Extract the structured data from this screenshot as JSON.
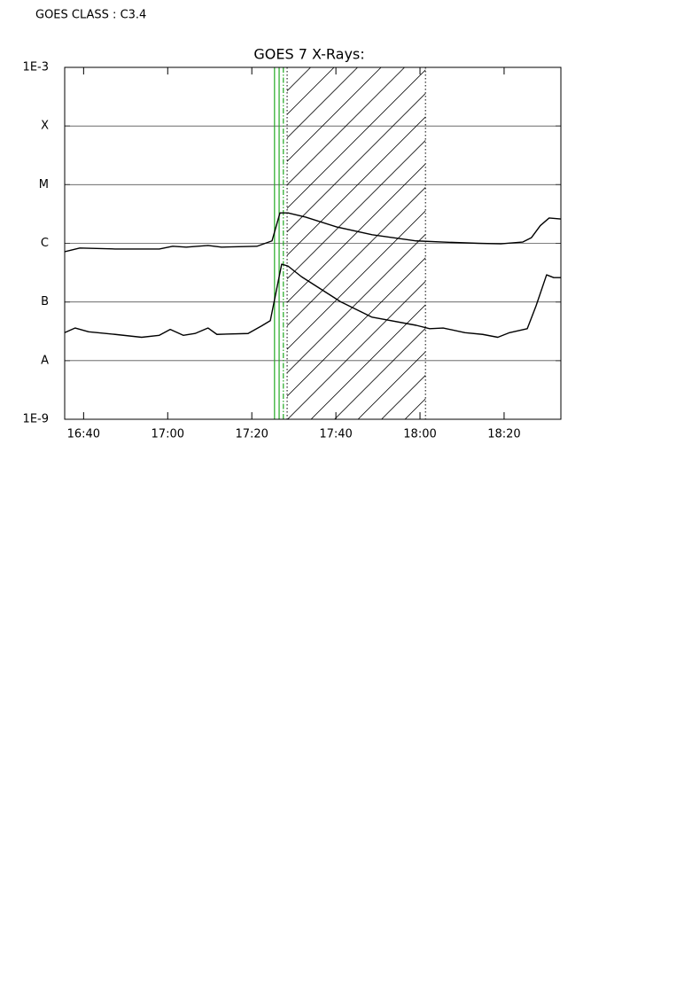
{
  "chart_data": {
    "type": "line",
    "annotation": "GOES CLASS : C3.4",
    "title": "GOES 7 X-Rays:",
    "log_y": true,
    "grid": true,
    "xlim": [
      995.5,
      1113.5
    ],
    "xticks": [
      {
        "value": 1000,
        "label": "16:40"
      },
      {
        "value": 1020,
        "label": "17:00"
      },
      {
        "value": 1040,
        "label": "17:20"
      },
      {
        "value": 1060,
        "label": "17:40"
      },
      {
        "value": 1080,
        "label": "18:00"
      },
      {
        "value": 1100,
        "label": "18:20"
      }
    ],
    "ylim": [
      1e-09,
      0.001
    ],
    "yticks": [
      {
        "value": 0.001,
        "label": "1E-3"
      },
      {
        "value": 0.0001,
        "label": "X"
      },
      {
        "value": 1e-05,
        "label": "M"
      },
      {
        "value": 1e-06,
        "label": "C"
      },
      {
        "value": 1e-07,
        "label": "B"
      },
      {
        "value": 1e-08,
        "label": "A"
      },
      {
        "value": 1e-09,
        "label": "1E-9"
      }
    ],
    "series": [
      {
        "color": "#000000",
        "x": [
          995.5,
          999.1,
          1007.5,
          1018.0,
          1021.2,
          1024.4,
          1029.6,
          1032.8,
          1041.2,
          1044.8,
          1046.7,
          1048.6,
          1052.8,
          1060.2,
          1068.6,
          1079.1,
          1085.5,
          1093.9,
          1099.2,
          1104.4,
          1106.5,
          1108.6,
          1110.7,
          1113.5
        ],
        "values": [
          7.2e-07,
          8.3e-07,
          8e-07,
          8e-07,
          8.9e-07,
          8.6e-07,
          9.2e-07,
          8.6e-07,
          8.9e-07,
          1.1e-06,
          3.3e-06,
          3.3e-06,
          2.8e-06,
          1.9e-06,
          1.4e-06,
          1.1e-06,
          1.05e-06,
          1e-06,
          9.8e-07,
          1.05e-06,
          1.25e-06,
          2e-06,
          2.7e-06,
          2.6e-06
        ]
      },
      {
        "color": "#000000",
        "x": [
          995.5,
          998.0,
          1001.2,
          1007.5,
          1013.8,
          1018.0,
          1020.6,
          1023.7,
          1026.5,
          1029.6,
          1031.7,
          1039.1,
          1042.3,
          1044.4,
          1047.1,
          1048.6,
          1051.8,
          1061.2,
          1068.6,
          1079.1,
          1082.3,
          1085.5,
          1090.7,
          1094.9,
          1098.5,
          1101.3,
          1105.5,
          1107.6,
          1110.1,
          1111.8,
          1113.5
        ],
        "values": [
          3e-08,
          3.6e-08,
          3.1e-08,
          2.8e-08,
          2.5e-08,
          2.7e-08,
          3.4e-08,
          2.7e-08,
          2.9e-08,
          3.6e-08,
          2.8e-08,
          2.9e-08,
          3.9e-08,
          4.8e-08,
          4.4e-07,
          4.1e-07,
          2.7e-07,
          1e-07,
          5.5e-08,
          4e-08,
          3.5e-08,
          3.6e-08,
          3e-08,
          2.8e-08,
          2.5e-08,
          3e-08,
          3.5e-08,
          8.6e-08,
          2.9e-07,
          2.6e-07,
          2.6e-07
        ]
      }
    ],
    "vlines": [
      {
        "x": 1045.4,
        "color": "#22aa22",
        "style": "solid"
      },
      {
        "x": 1046.5,
        "color": "#22aa22",
        "style": "solid"
      },
      {
        "x": 1047.5,
        "color": "#22aa22",
        "style": "dashdot"
      }
    ],
    "hatch": [
      1048.4,
      1081.3
    ]
  }
}
